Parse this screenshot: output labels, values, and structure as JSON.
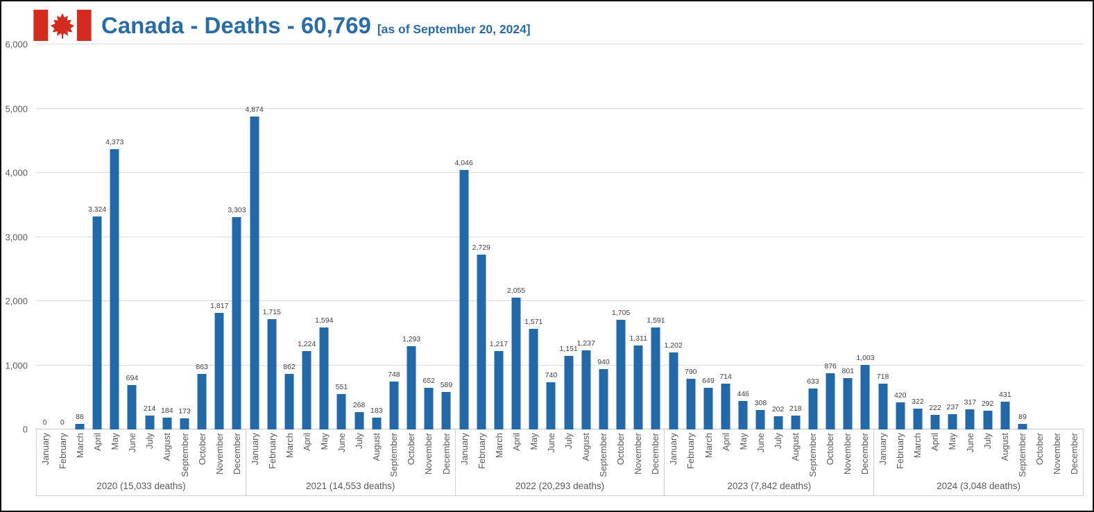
{
  "header": {
    "title": "Canada - Deaths - 60,769",
    "subtitle": "[as of September 20, 2024]",
    "title_color": "#2a6ca6",
    "flag_icon": "canada-flag-icon",
    "flag_red": "#d52b1e"
  },
  "chart_data": {
    "type": "bar",
    "title": "Canada - Deaths - 60,769 [as of September 20, 2024]",
    "xlabel": "",
    "ylabel": "",
    "ylim": [
      0,
      6000
    ],
    "ytick_interval": 1000,
    "yticks": [
      "0",
      "1,000",
      "2,000",
      "3,000",
      "4,000",
      "5,000",
      "6,000"
    ],
    "grid": "horizontal",
    "legend": "none",
    "bar_color": "#2169a8",
    "months": [
      "January",
      "February",
      "March",
      "April",
      "May",
      "June",
      "July",
      "August",
      "September",
      "October",
      "November",
      "December"
    ],
    "groups": [
      {
        "label": "2020 (15,033 deaths)",
        "year": "2020",
        "values": [
          0,
          0,
          88,
          3324,
          4373,
          694,
          214,
          184,
          173,
          863,
          1817,
          3303
        ]
      },
      {
        "label": "2021 (14,553 deaths)",
        "year": "2021",
        "values": [
          4874,
          1715,
          862,
          1224,
          1594,
          551,
          268,
          183,
          748,
          1293,
          652,
          589
        ]
      },
      {
        "label": "2022 (20,293 deaths)",
        "year": "2022",
        "values": [
          4046,
          2729,
          1217,
          2055,
          1571,
          740,
          1151,
          1237,
          940,
          1705,
          1311,
          1591
        ]
      },
      {
        "label": "2023 (7,842 deaths)",
        "year": "2023",
        "values": [
          1202,
          790,
          649,
          714,
          446,
          308,
          202,
          218,
          633,
          876,
          801,
          1003
        ]
      },
      {
        "label": "2024 (3,048 deaths)",
        "year": "2024",
        "values": [
          718,
          420,
          322,
          222,
          237,
          317,
          292,
          431,
          89,
          null,
          null,
          null
        ]
      }
    ]
  }
}
